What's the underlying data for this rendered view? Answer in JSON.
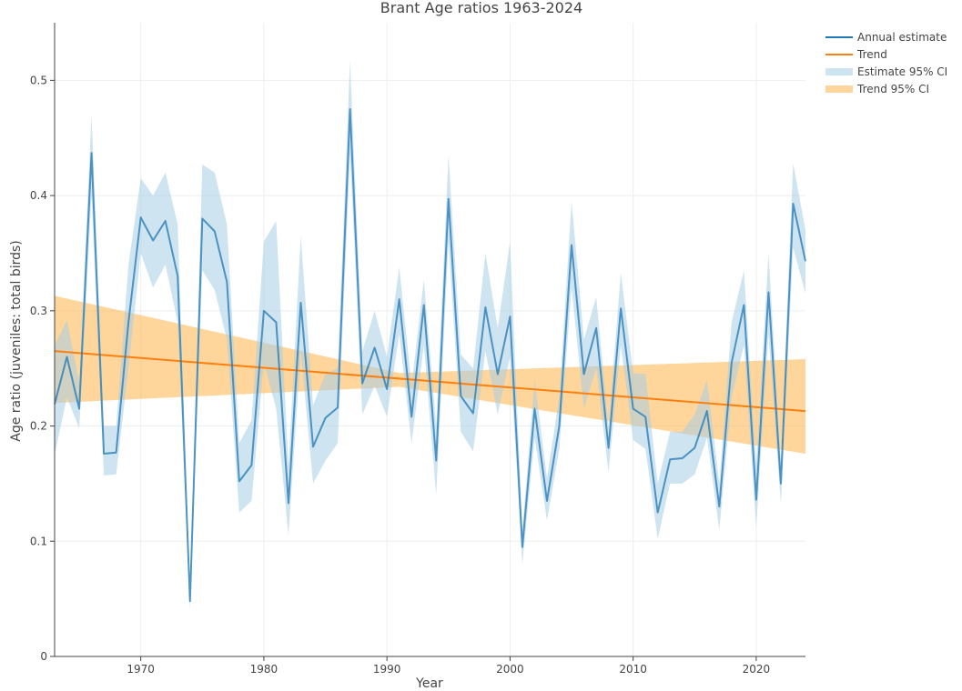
{
  "chart_data": {
    "type": "line",
    "title": "Brant Age ratios 1963-2024",
    "xlabel": "Year",
    "ylabel": "Age ratio (juveniles: total birds)",
    "xlim": [
      1963,
      2024
    ],
    "ylim": [
      0,
      0.55
    ],
    "x_ticks": [
      1970,
      1980,
      1990,
      2000,
      2010,
      2020
    ],
    "y_ticks": [
      0,
      0.1,
      0.2,
      0.3,
      0.4,
      0.5
    ],
    "grid": true,
    "legend_position": "top-right",
    "colors": {
      "estimate": "#1f77b4",
      "trend": "#ff7f0e",
      "estimate_ci": "#a6cee3",
      "trend_ci": "#fdb44b"
    },
    "legend": [
      "Annual estimate",
      "Trend",
      "Estimate 95% CI",
      "Trend 95% CI"
    ],
    "x": [
      1963,
      1964,
      1965,
      1966,
      1967,
      1968,
      1969,
      1970,
      1971,
      1972,
      1973,
      1974,
      1975,
      1976,
      1977,
      1978,
      1979,
      1980,
      1981,
      1982,
      1983,
      1984,
      1985,
      1986,
      1987,
      1988,
      1989,
      1990,
      1991,
      1992,
      1993,
      1994,
      1995,
      1996,
      1997,
      1998,
      1999,
      2000,
      2001,
      2002,
      2003,
      2004,
      2005,
      2006,
      2007,
      2008,
      2009,
      2010,
      2011,
      2012,
      2013,
      2014,
      2015,
      2016,
      2017,
      2018,
      2019,
      2020,
      2021,
      2022,
      2023,
      2024
    ],
    "series": [
      {
        "name": "Annual estimate",
        "values": [
          0.219,
          0.26,
          0.215,
          0.437,
          0.176,
          0.177,
          0.29,
          0.381,
          0.361,
          0.378,
          0.33,
          0.048,
          0.38,
          0.369,
          0.325,
          0.152,
          0.166,
          0.3,
          0.29,
          0.133,
          0.307,
          0.182,
          0.207,
          0.216,
          0.475,
          0.237,
          0.268,
          0.232,
          0.31,
          0.208,
          0.305,
          0.17,
          0.397,
          0.226,
          0.211,
          0.303,
          0.245,
          0.295,
          0.095,
          0.215,
          0.135,
          0.2,
          0.357,
          0.245,
          0.285,
          0.181,
          0.302,
          0.215,
          0.208,
          0.125,
          0.171,
          0.172,
          0.181,
          0.213,
          0.13,
          0.255,
          0.305,
          0.136,
          0.316,
          0.15,
          0.393,
          0.343
        ],
        "ci_lower": [
          0.175,
          0.225,
          0.198,
          0.4,
          0.157,
          0.158,
          0.25,
          0.35,
          0.32,
          0.34,
          0.29,
          0.04,
          0.335,
          0.318,
          0.275,
          0.125,
          0.135,
          0.255,
          0.215,
          0.105,
          0.265,
          0.15,
          0.17,
          0.185,
          0.435,
          0.21,
          0.235,
          0.208,
          0.28,
          0.185,
          0.27,
          0.14,
          0.36,
          0.195,
          0.178,
          0.265,
          0.21,
          0.26,
          0.08,
          0.19,
          0.118,
          0.18,
          0.32,
          0.215,
          0.25,
          0.16,
          0.27,
          0.188,
          0.18,
          0.102,
          0.15,
          0.15,
          0.158,
          0.19,
          0.11,
          0.225,
          0.27,
          0.112,
          0.28,
          0.132,
          0.355,
          0.315
        ],
        "ci_upper": [
          0.27,
          0.292,
          0.238,
          0.47,
          0.2,
          0.2,
          0.34,
          0.415,
          0.4,
          0.42,
          0.375,
          0.055,
          0.427,
          0.42,
          0.375,
          0.185,
          0.205,
          0.36,
          0.378,
          0.165,
          0.365,
          0.218,
          0.245,
          0.25,
          0.517,
          0.265,
          0.3,
          0.26,
          0.338,
          0.235,
          0.327,
          0.2,
          0.435,
          0.262,
          0.25,
          0.35,
          0.285,
          0.36,
          0.11,
          0.24,
          0.155,
          0.225,
          0.395,
          0.275,
          0.312,
          0.2,
          0.333,
          0.246,
          0.245,
          0.15,
          0.195,
          0.195,
          0.21,
          0.24,
          0.15,
          0.29,
          0.335,
          0.165,
          0.35,
          0.17,
          0.428,
          0.37
        ]
      },
      {
        "name": "Trend",
        "values_endpoints": [
          0.265,
          0.213
        ],
        "ci_lower_endpoints": [
          0.22,
          0.176
        ],
        "ci_upper_endpoints": [
          0.313,
          0.258
        ],
        "ci_mid": {
          "x": 1991,
          "lower": 0.234,
          "upper": 0.246
        }
      }
    ]
  }
}
